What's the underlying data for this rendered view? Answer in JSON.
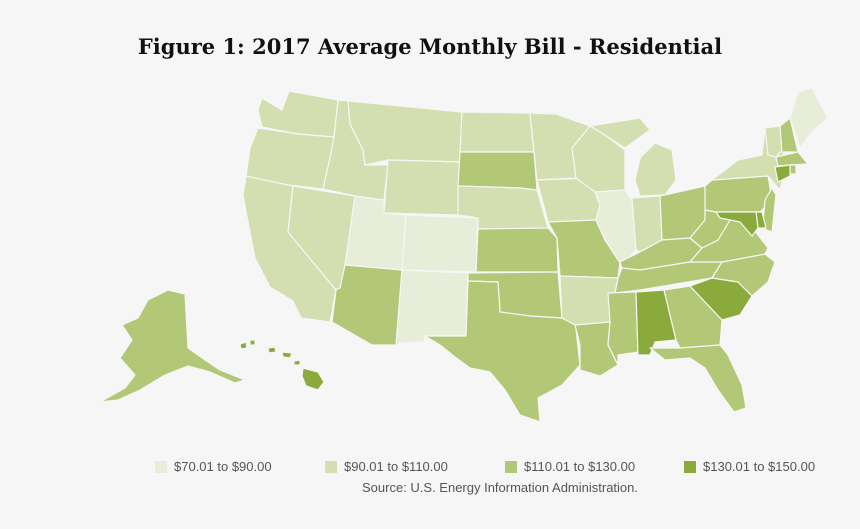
{
  "title": "Figure 1: 2017 Average Monthly Bill - Residential",
  "legend": [
    {
      "label": "$70.01 to $90.00",
      "color": "#e8edd9"
    },
    {
      "label": "$90.01 to $110.00",
      "color": "#d3dfb0"
    },
    {
      "label": "$110.01 to $130.00",
      "color": "#b3c877"
    },
    {
      "label": "$130.01 to $150.00",
      "color": "#8aaa3b"
    }
  ],
  "source": "Source: U.S. Energy Information Administration.",
  "states": [
    {
      "id": "WA",
      "tier": 1
    },
    {
      "id": "OR",
      "tier": 1
    },
    {
      "id": "CA",
      "tier": 1
    },
    {
      "id": "NV",
      "tier": 1
    },
    {
      "id": "ID",
      "tier": 1
    },
    {
      "id": "MT",
      "tier": 1
    },
    {
      "id": "WY",
      "tier": 1
    },
    {
      "id": "UT",
      "tier": 0
    },
    {
      "id": "CO",
      "tier": 0
    },
    {
      "id": "AZ",
      "tier": 2
    },
    {
      "id": "NM",
      "tier": 0
    },
    {
      "id": "ND",
      "tier": 1
    },
    {
      "id": "SD",
      "tier": 2
    },
    {
      "id": "NE",
      "tier": 1
    },
    {
      "id": "KS",
      "tier": 2
    },
    {
      "id": "OK",
      "tier": 2
    },
    {
      "id": "TX",
      "tier": 2
    },
    {
      "id": "MN",
      "tier": 1
    },
    {
      "id": "IA",
      "tier": 1
    },
    {
      "id": "MO",
      "tier": 2
    },
    {
      "id": "AR",
      "tier": 1
    },
    {
      "id": "LA",
      "tier": 2
    },
    {
      "id": "WI",
      "tier": 1
    },
    {
      "id": "IL",
      "tier": 0
    },
    {
      "id": "MI",
      "tier": 1
    },
    {
      "id": "IN",
      "tier": 1
    },
    {
      "id": "OH",
      "tier": 2
    },
    {
      "id": "KY",
      "tier": 2
    },
    {
      "id": "TN",
      "tier": 2
    },
    {
      "id": "MS",
      "tier": 2
    },
    {
      "id": "AL",
      "tier": 3
    },
    {
      "id": "GA",
      "tier": 2
    },
    {
      "id": "FL",
      "tier": 2
    },
    {
      "id": "SC",
      "tier": 3
    },
    {
      "id": "NC",
      "tier": 2
    },
    {
      "id": "VA",
      "tier": 2
    },
    {
      "id": "WV",
      "tier": 2
    },
    {
      "id": "PA",
      "tier": 2
    },
    {
      "id": "NY",
      "tier": 1
    },
    {
      "id": "VT",
      "tier": 1
    },
    {
      "id": "NH",
      "tier": 2
    },
    {
      "id": "ME",
      "tier": 0
    },
    {
      "id": "MA",
      "tier": 2
    },
    {
      "id": "CT",
      "tier": 3
    },
    {
      "id": "RI",
      "tier": 2
    },
    {
      "id": "NJ",
      "tier": 2
    },
    {
      "id": "DE",
      "tier": 3
    },
    {
      "id": "MD",
      "tier": 3
    },
    {
      "id": "AK",
      "tier": 2
    },
    {
      "id": "HI",
      "tier": 3
    }
  ]
}
